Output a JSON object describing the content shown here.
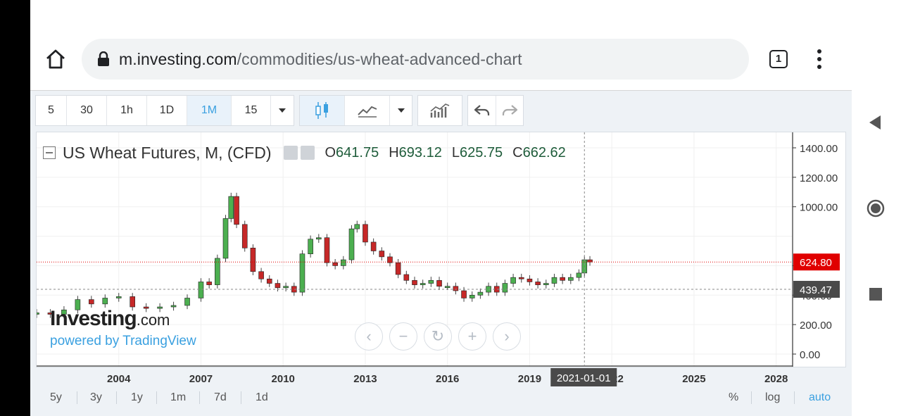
{
  "browser": {
    "url_domain": "m.investing.com",
    "url_path": "/commodities/us-wheat-advanced-chart",
    "tab_count": "1"
  },
  "toolbar": {
    "intervals": [
      "5",
      "30",
      "1h",
      "1D",
      "1M",
      "15"
    ],
    "active_interval": "1M"
  },
  "legend": {
    "title": "US Wheat Futures, M, (CFD)",
    "open_label": "O",
    "open": "641.75",
    "high_label": "H",
    "high": "693.12",
    "low_label": "L",
    "low": "625.75",
    "close_label": "C",
    "close": "662.62"
  },
  "logo": {
    "brand": "Investing",
    "suffix": ".com",
    "powered": "powered by TradingView"
  },
  "price_tags": {
    "current": "624.80",
    "crosshair": "439.47"
  },
  "crosshair_date": "2021-01-01",
  "range_buttons": [
    "5y",
    "3y",
    "1y",
    "1m",
    "7d",
    "1d"
  ],
  "scale_buttons": {
    "percent": "%",
    "log": "log",
    "auto": "auto"
  },
  "colors": {
    "up": "#4caf50",
    "down": "#c62828",
    "accent": "#3aa0e0",
    "price_tag": "#e00000"
  },
  "chart_data": {
    "type": "candlestick",
    "y_ticks": [
      "1400.00",
      "1200.00",
      "1000.00",
      "600.00",
      "400.00",
      "200.00",
      "0.00"
    ],
    "x_ticks": [
      "2004",
      "2007",
      "2010",
      "2013",
      "2016",
      "2019",
      "2022",
      "2025",
      "2028"
    ],
    "y_range": [
      0,
      1400
    ],
    "x_range": [
      2001.0,
      2028.6
    ],
    "series": {
      "x": [
        2001.0,
        2001.5,
        2002.0,
        2002.5,
        2003.0,
        2003.5,
        2004.0,
        2004.5,
        2005.0,
        2005.5,
        2006.0,
        2006.5,
        2007.0,
        2007.3,
        2007.6,
        2007.9,
        2008.1,
        2008.3,
        2008.6,
        2008.9,
        2009.2,
        2009.5,
        2009.8,
        2010.1,
        2010.4,
        2010.7,
        2011.0,
        2011.3,
        2011.6,
        2011.9,
        2012.2,
        2012.5,
        2012.7,
        2013.0,
        2013.3,
        2013.6,
        2013.9,
        2014.2,
        2014.5,
        2014.8,
        2015.1,
        2015.4,
        2015.7,
        2016.0,
        2016.3,
        2016.6,
        2016.9,
        2017.2,
        2017.5,
        2017.8,
        2018.1,
        2018.4,
        2018.7,
        2019.0,
        2019.3,
        2019.6,
        2019.9,
        2020.2,
        2020.5,
        2020.8,
        2021.0,
        2021.2
      ],
      "close": [
        280,
        270,
        300,
        370,
        340,
        380,
        390,
        320,
        310,
        320,
        330,
        380,
        490,
        470,
        650,
        920,
        1070,
        880,
        720,
        560,
        510,
        480,
        450,
        460,
        420,
        680,
        780,
        790,
        620,
        600,
        640,
        850,
        880,
        760,
        700,
        660,
        620,
        540,
        500,
        470,
        480,
        500,
        460,
        460,
        430,
        380,
        400,
        420,
        460,
        420,
        480,
        520,
        510,
        490,
        470,
        480,
        520,
        500,
        520,
        550,
        640,
        625
      ]
    }
  }
}
